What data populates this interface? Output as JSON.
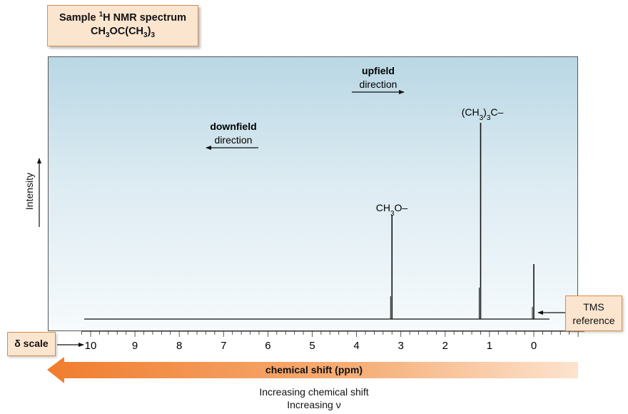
{
  "title": {
    "line1_prefix": "Sample ",
    "line1_sup": "1",
    "line1_suffix": "H NMR spectrum",
    "formula_a": "CH",
    "formula_a_sub": "3",
    "formula_b": "OC(CH",
    "formula_b_sub": "3",
    "formula_c": ")",
    "formula_c_sub": "3"
  },
  "chart_data": {
    "type": "line",
    "title": "Sample 1H NMR spectrum CH3OC(CH3)3",
    "xlabel": "chemical shift (ppm)",
    "ylabel": "Intensity",
    "x_reversed": true,
    "xlim": [
      10.2,
      -0.5
    ],
    "ylim": [
      0,
      1
    ],
    "x_ticks": [
      10,
      9,
      8,
      7,
      6,
      5,
      4,
      3,
      2,
      1,
      0
    ],
    "minor_tick_step": 0.2,
    "peaks": [
      {
        "x": 3.2,
        "y": 0.53,
        "label_main": "CH",
        "label_sub": "3",
        "label_tail": "O–"
      },
      {
        "x": 1.2,
        "y": 1.0,
        "label_main": "(CH",
        "label_sub": "3",
        "label_tail": ")₃C–"
      },
      {
        "x": 0.0,
        "y": 0.28,
        "label_main": "",
        "label_sub": "",
        "label_tail": ""
      }
    ]
  },
  "peak_labels": {
    "ch3o": {
      "main": "CH",
      "sub": "3",
      "tail": "O–"
    },
    "tbu": {
      "main": "(CH",
      "sub": "3",
      "mid": ")",
      "sub2": "3",
      "tail": "C–"
    }
  },
  "upfield": {
    "title": "upfield",
    "sub": "direction"
  },
  "downfield": {
    "title": "downfield",
    "sub": "direction"
  },
  "ylabel": "Intensity",
  "tms": {
    "line1": "TMS",
    "line2": "reference"
  },
  "delta": {
    "symbol": "δ",
    "text": " scale"
  },
  "shift_bar_label": "chemical shift (ppm)",
  "caption1": "Increasing chemical shift",
  "caption2": "Increasing ν",
  "colors": {
    "accent": "#f07d2e",
    "callout_fill": "#fce5cf",
    "callout_border": "#d98c4c"
  }
}
